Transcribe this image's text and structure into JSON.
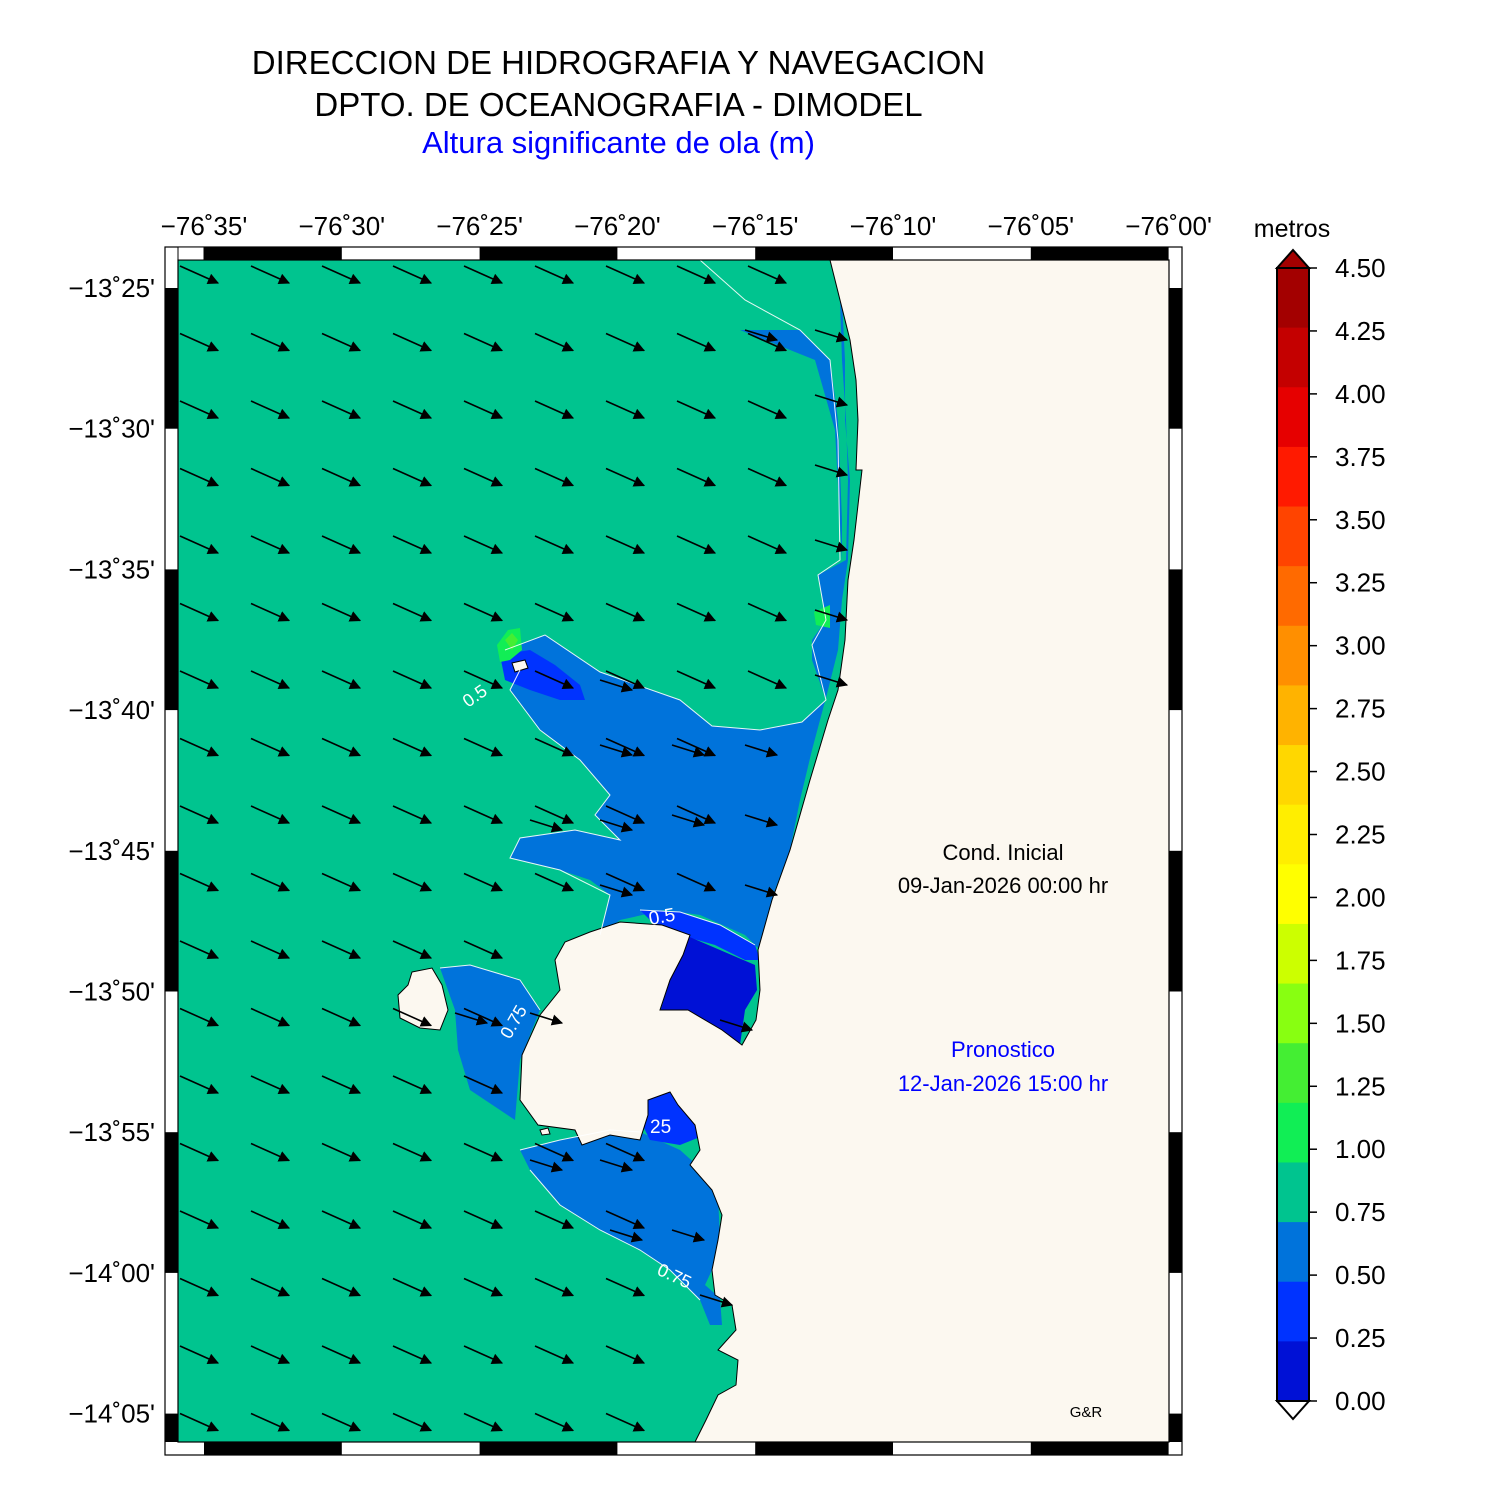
{
  "header": {
    "line1": "DIRECCION DE HIDROGRAFIA Y NAVEGACION",
    "line2": "DPTO. DE OCEANOGRAFIA - DIMODEL",
    "line3": "Altura significante de ola (m)"
  },
  "map": {
    "lon_ticks": [
      "−76˚35'",
      "−76˚30'",
      "−76˚25'",
      "−76˚20'",
      "−76˚15'",
      "−76˚10'",
      "−76˚05'",
      "−76˚00'"
    ],
    "lat_ticks": [
      "−13˚25'",
      "−13˚30'",
      "−13˚35'",
      "−13˚40'",
      "−13˚45'",
      "−13˚50'",
      "−13˚55'",
      "−14˚00'",
      "−14˚05'"
    ],
    "lon_range": [
      -76.6,
      -76.0
    ],
    "lat_range": [
      -14.11,
      -13.4
    ],
    "colors": {
      "sea_075_100": "#00c48f",
      "sea_050_075": "#0073db",
      "sea_025_050": "#0033ff",
      "sea_000_025": "#0011d6",
      "land": "#fcf8f0"
    },
    "contour_labels": [
      "0.5",
      "0.75",
      "25",
      "0.5",
      "0.75"
    ],
    "arrow_direction": "south-east"
  },
  "annotations": {
    "initial_label": "Cond. Inicial",
    "initial_date": "09-Jan-2026 00:00 hr",
    "forecast_label": "Pronostico",
    "forecast_date": "12-Jan-2026 15:00 hr",
    "credit": "G&R"
  },
  "colorbar": {
    "unit": "metros",
    "labels": [
      "4.50",
      "4.25",
      "4.00",
      "3.75",
      "3.50",
      "3.25",
      "3.00",
      "2.75",
      "2.50",
      "2.25",
      "2.00",
      "1.75",
      "1.50",
      "1.25",
      "1.00",
      "0.75",
      "0.50",
      "0.25",
      "0.00"
    ],
    "colors_top_to_bottom": [
      "#a30000",
      "#c40000",
      "#e60000",
      "#ff1a00",
      "#ff4400",
      "#ff6a00",
      "#ff8f00",
      "#ffb300",
      "#ffd700",
      "#ffee00",
      "#ffff00",
      "#ccff00",
      "#88ff11",
      "#44ee33",
      "#11ee55",
      "#00c48f",
      "#0073db",
      "#0033ff",
      "#0011d6"
    ]
  }
}
